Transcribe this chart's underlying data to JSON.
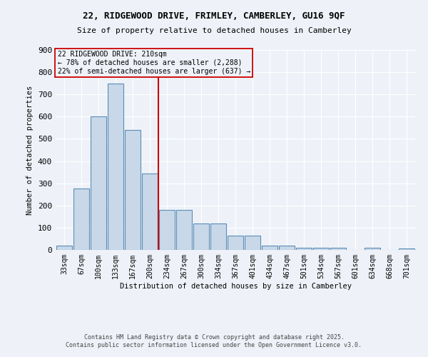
{
  "title_line1": "22, RIDGEWOOD DRIVE, FRIMLEY, CAMBERLEY, GU16 9QF",
  "title_line2": "Size of property relative to detached houses in Camberley",
  "xlabel": "Distribution of detached houses by size in Camberley",
  "ylabel": "Number of detached properties",
  "bar_labels": [
    "33sqm",
    "67sqm",
    "100sqm",
    "133sqm",
    "167sqm",
    "200sqm",
    "234sqm",
    "267sqm",
    "300sqm",
    "334sqm",
    "367sqm",
    "401sqm",
    "434sqm",
    "467sqm",
    "501sqm",
    "534sqm",
    "567sqm",
    "601sqm",
    "634sqm",
    "668sqm",
    "701sqm"
  ],
  "bar_values": [
    20,
    275,
    600,
    750,
    540,
    345,
    180,
    180,
    120,
    120,
    65,
    65,
    20,
    20,
    10,
    10,
    10,
    0,
    10,
    0,
    5
  ],
  "bar_color": "#c8d8e8",
  "bar_edge_color": "#5b8db8",
  "property_line_x": 5.5,
  "annotation_text_line1": "22 RIDGEWOOD DRIVE: 210sqm",
  "annotation_text_line2": "← 78% of detached houses are smaller (2,288)",
  "annotation_text_line3": "22% of semi-detached houses are larger (637) →",
  "vline_color": "#cc0000",
  "annotation_box_edge_color": "#cc0000",
  "background_color": "#eef2f8",
  "grid_color": "#ffffff",
  "ylim": [
    0,
    900
  ],
  "yticks": [
    0,
    100,
    200,
    300,
    400,
    500,
    600,
    700,
    800,
    900
  ],
  "footer_line1": "Contains HM Land Registry data © Crown copyright and database right 2025.",
  "footer_line2": "Contains public sector information licensed under the Open Government Licence v3.0."
}
